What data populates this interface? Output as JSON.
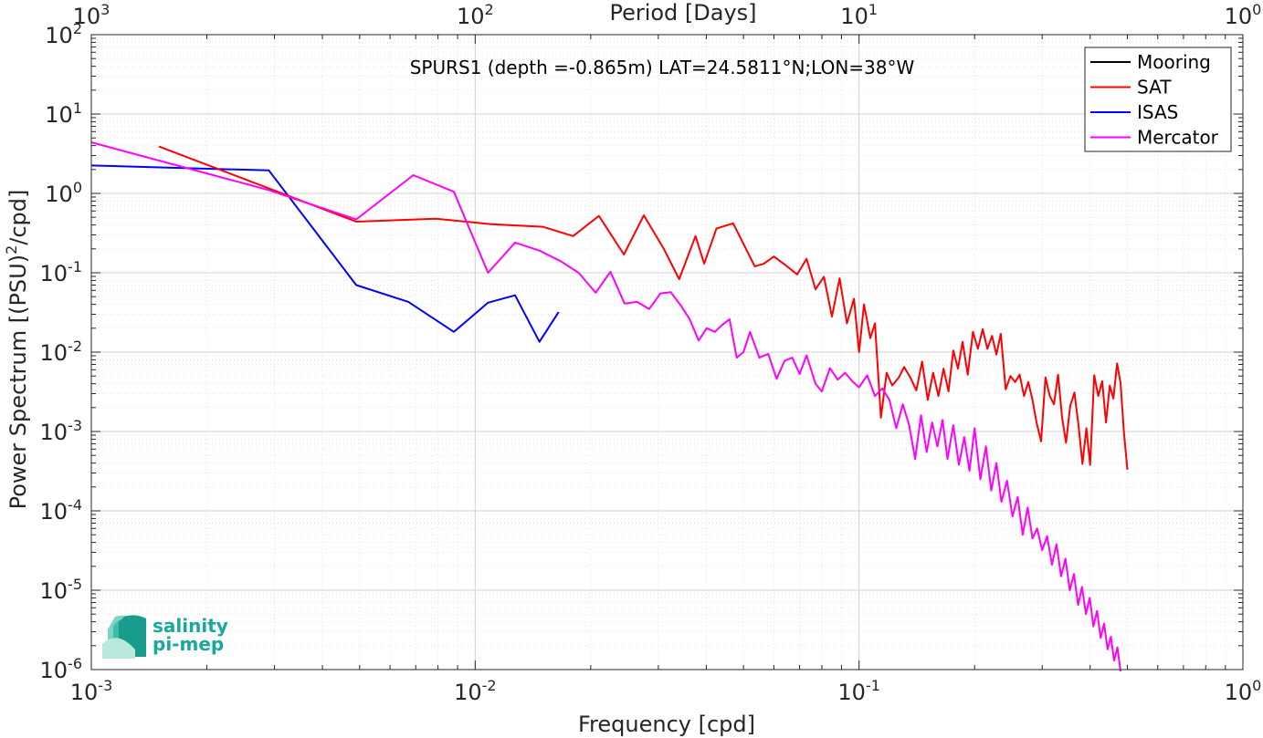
{
  "chart_data": {
    "type": "line",
    "title": "SPURS1 (depth =-0.865m) LAT=24.5811°N;LON=38°W",
    "xlabel": "Frequency [cpd]",
    "ylabel": "Power Spectrum [(PSU)",
    "ylabel_sup": "2",
    "ylabel_tail": "/cpd]",
    "top_xlabel": "Period [Days]",
    "xscale": "log",
    "yscale": "log",
    "xlim": [
      0.001,
      1
    ],
    "ylim": [
      1e-06,
      100
    ],
    "grid": true,
    "minor_grid": true,
    "legend_position": "top-right",
    "x_ticks": [
      {
        "base": "10",
        "exp": "-3"
      },
      {
        "base": "10",
        "exp": "-2"
      },
      {
        "base": "10",
        "exp": "-1"
      },
      {
        "base": "10",
        "exp": "0"
      }
    ],
    "top_ticks": [
      {
        "base": "10",
        "exp": "3"
      },
      {
        "base": "10",
        "exp": "2"
      },
      {
        "base": "10",
        "exp": "1"
      },
      {
        "base": "10",
        "exp": "0"
      }
    ],
    "y_ticks": [
      {
        "base": "10",
        "exp": "-6"
      },
      {
        "base": "10",
        "exp": "-5"
      },
      {
        "base": "10",
        "exp": "-4"
      },
      {
        "base": "10",
        "exp": "-3"
      },
      {
        "base": "10",
        "exp": "-2"
      },
      {
        "base": "10",
        "exp": "-1"
      },
      {
        "base": "10",
        "exp": "0"
      },
      {
        "base": "10",
        "exp": "1"
      },
      {
        "base": "10",
        "exp": "2"
      }
    ],
    "series": [
      {
        "name": "Mooring",
        "color": "#000000",
        "x": [],
        "y": []
      },
      {
        "name": "SAT",
        "color": "#ff0000",
        "x": [
          0.0015,
          0.0049,
          0.0079,
          0.011,
          0.015,
          0.018,
          0.021,
          0.0244,
          0.0275,
          0.031,
          0.034,
          0.0375,
          0.0395,
          0.0425,
          0.047,
          0.0535,
          0.0565,
          0.06,
          0.065,
          0.069,
          0.073,
          0.077,
          0.081,
          0.085,
          0.089,
          0.093,
          0.097,
          0.1,
          0.103,
          0.107,
          0.11,
          0.114,
          0.118,
          0.122,
          0.127,
          0.131,
          0.136,
          0.141,
          0.146,
          0.151,
          0.156,
          0.161,
          0.166,
          0.171,
          0.176,
          0.181,
          0.186,
          0.192,
          0.198,
          0.204,
          0.21,
          0.216,
          0.222,
          0.228,
          0.234,
          0.241,
          0.248,
          0.255,
          0.262,
          0.269,
          0.276,
          0.283,
          0.29,
          0.298,
          0.306,
          0.314,
          0.322,
          0.33,
          0.338,
          0.346,
          0.355,
          0.364,
          0.373,
          0.382,
          0.391,
          0.4,
          0.41,
          0.42,
          0.43,
          0.44,
          0.45,
          0.46,
          0.47,
          0.48,
          0.49,
          0.5
        ],
        "y": [
          3.9,
          0.44,
          0.48,
          0.41,
          0.38,
          0.29,
          0.52,
          0.17,
          0.53,
          0.2,
          0.083,
          0.29,
          0.13,
          0.36,
          0.42,
          0.12,
          0.13,
          0.16,
          0.12,
          0.095,
          0.15,
          0.062,
          0.089,
          0.028,
          0.085,
          0.023,
          0.047,
          0.01,
          0.04,
          0.015,
          0.023,
          0.0015,
          0.0055,
          0.0038,
          0.0048,
          0.0065,
          0.0048,
          0.0033,
          0.0076,
          0.0025,
          0.0055,
          0.0028,
          0.0062,
          0.0032,
          0.0105,
          0.0062,
          0.0135,
          0.0052,
          0.018,
          0.011,
          0.0195,
          0.011,
          0.016,
          0.0093,
          0.017,
          0.0034,
          0.005,
          0.0042,
          0.0052,
          0.0028,
          0.0042,
          0.0025,
          0.0013,
          0.00075,
          0.0048,
          0.0028,
          0.0022,
          0.0052,
          0.0015,
          0.00072,
          0.0021,
          0.0031,
          0.0012,
          0.00039,
          0.0011,
          0.00038,
          0.0051,
          0.0028,
          0.0043,
          0.0013,
          0.0038,
          0.0026,
          0.0072,
          0.0041,
          0.00095,
          0.00033
        ]
      },
      {
        "name": "ISAS",
        "color": "#0000ff",
        "x": [
          0.001,
          0.0029,
          0.0049,
          0.0067,
          0.0088,
          0.0108,
          0.0127,
          0.0147,
          0.0165
        ],
        "y": [
          2.25,
          1.95,
          0.07,
          0.043,
          0.018,
          0.042,
          0.052,
          0.0135,
          0.032
        ]
      },
      {
        "name": "Mercator",
        "color": "#ff00ff",
        "x": [
          0.001,
          0.0029,
          0.0049,
          0.0069,
          0.0088,
          0.0108,
          0.0127,
          0.0147,
          0.0167,
          0.0186,
          0.0206,
          0.0225,
          0.0245,
          0.0264,
          0.0284,
          0.0304,
          0.0323,
          0.0343,
          0.0362,
          0.0382,
          0.0401,
          0.0421,
          0.044,
          0.046,
          0.048,
          0.05,
          0.052,
          0.055,
          0.058,
          0.061,
          0.064,
          0.067,
          0.07,
          0.073,
          0.077,
          0.08,
          0.084,
          0.088,
          0.092,
          0.096,
          0.1,
          0.105,
          0.11,
          0.115,
          0.12,
          0.125,
          0.13,
          0.135,
          0.14,
          0.145,
          0.15,
          0.155,
          0.16,
          0.165,
          0.17,
          0.176,
          0.182,
          0.188,
          0.194,
          0.2,
          0.207,
          0.214,
          0.221,
          0.228,
          0.235,
          0.243,
          0.251,
          0.259,
          0.267,
          0.275,
          0.283,
          0.291,
          0.3,
          0.309,
          0.318,
          0.327,
          0.336,
          0.345,
          0.354,
          0.363,
          0.372,
          0.381,
          0.39,
          0.399,
          0.408,
          0.417,
          0.426,
          0.435,
          0.444,
          0.453,
          0.462,
          0.471,
          0.48
        ],
        "y": [
          4.4,
          1.1,
          0.47,
          1.7,
          1.05,
          0.1,
          0.24,
          0.19,
          0.14,
          0.1,
          0.056,
          0.103,
          0.041,
          0.043,
          0.035,
          0.055,
          0.057,
          0.039,
          0.026,
          0.014,
          0.02,
          0.018,
          0.022,
          0.026,
          0.0085,
          0.01,
          0.018,
          0.0085,
          0.0095,
          0.0046,
          0.0078,
          0.0085,
          0.0053,
          0.0091,
          0.004,
          0.0032,
          0.0063,
          0.0045,
          0.0055,
          0.0043,
          0.0036,
          0.0051,
          0.0028,
          0.0035,
          0.0025,
          0.0011,
          0.0022,
          0.0012,
          0.00045,
          0.0016,
          0.00055,
          0.0013,
          0.00065,
          0.0014,
          0.00045,
          0.0012,
          0.00038,
          0.00085,
          0.00032,
          0.0011,
          0.00025,
          0.00065,
          0.00018,
          0.0004,
          0.00013,
          0.00024,
          8.5e-05,
          0.00015,
          5e-05,
          0.00011,
          4.5e-05,
          6e-05,
          3.2e-05,
          4.8e-05,
          2.1e-05,
          3.8e-05,
          1.5e-05,
          2.5e-05,
          1e-05,
          1.6e-05,
          6.5e-06,
          1.1e-05,
          5e-06,
          8e-06,
          3.5e-06,
          5.5e-06,
          2.5e-06,
          3.8e-06,
          1.8e-06,
          2.6e-06,
          1.3e-06,
          1.9e-06,
          9.5e-07
        ]
      }
    ]
  },
  "logo": {
    "line1": "salinity",
    "line2": "pi-mep",
    "color": "#1aa89a"
  }
}
